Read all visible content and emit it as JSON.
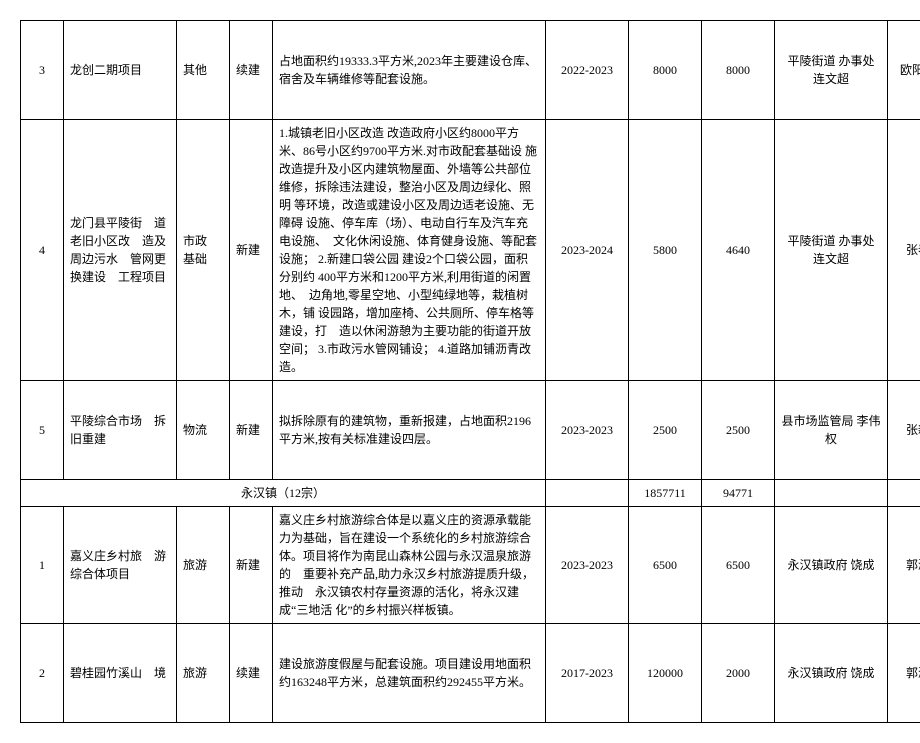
{
  "rows": [
    {
      "idx": "3",
      "name": "龙创二期项目",
      "cat": "其他",
      "status": "续建",
      "desc": "占地面积约19333.3平方米,2023年主要建设仓库、　宿舍及车辆维修等配套设施。",
      "period": "2022-2023",
      "num1": "8000",
      "num2": "8000",
      "agency": "平陵街道 办事处 连文超",
      "person": "欧阳惠鼎"
    },
    {
      "idx": "4",
      "name": "龙门县平陵街　道老旧小区改　造及周边污水　管网更换建设　工程项目",
      "cat": "市政　基础",
      "status": "新建",
      "desc": "1.城镇老旧小区改造  改造政府小区约8000平方　米、86号小区约9700平方米.对市政配套基础设  施改造提升及小区内建筑物屋面、外墙等公共部位  维修，拆除违法建设，整治小区及周边绿化、照明  等环境，改造或建设小区及周边适老设施、无障碍  设施、停车库（场）、电动自行车及汽车充电设施、　文化休闲设施、体育健身设施、等配套设施；\n2.新建口袋公园  建设2个口袋公园，面积分别约  400平方米和1200平方米,利用街道的闲置地、　边角地,零星空地、小型纯绿地等，栽植树木，铺  设园路，增加座椅、公共厕所、停车格等建设，打　造以休闲游憩为主要功能的街道开放空间；\n3.市政污水管网铺设；\n4.道路加铺沥青改造。",
      "period": "2023-2024",
      "num1": "5800",
      "num2": "4640",
      "agency": "平陵街道 办事处 连文超",
      "person": "张春浪"
    },
    {
      "idx": "5",
      "name": "平陵综合市场　拆旧重建",
      "cat": "物流",
      "status": "新建",
      "desc": "拟拆除原有的建筑物，重新报建，占地面积2196 平方米,按有关标准建设四层。",
      "period": "2023-2023",
      "num1": "2500",
      "num2": "2500",
      "agency": "县市场监管局  李伟权",
      "person": "张新文"
    }
  ],
  "section": {
    "title": "永汉镇（12宗）",
    "num1": "1857711",
    "num2": "94771"
  },
  "rows2": [
    {
      "idx": "1",
      "name": "嘉义庄乡村旅　游综合体项目",
      "cat": "旅游",
      "status": "新建",
      "desc": "嘉义庄乡村旅游综合体是以嘉义庄的资源承载能　力为基础，旨在建设一个系统化的乡村旅游综合　体。项目将作为南昆山森林公园与永汉温泉旅游的　重要补充产品,助力永汉乡村旅游提质升级，推动　永汉镇农村存量资源的活化，将永汉建成“三地活  化”的乡村振兴样板镇。",
      "period": "2023-2023",
      "num1": "6500",
      "num2": "6500",
      "agency": "永汉镇政府  饶成",
      "person": "郭淑娴"
    },
    {
      "idx": "2",
      "name": "碧桂园竹溪山　境",
      "cat": "旅游",
      "status": "续建",
      "desc": "建设旅游度假屋与配套设施。项目建设用地面积约163248平方米，总建筑面积约292455平方米。",
      "period": "2017-2023",
      "num1": "120000",
      "num2": "2000",
      "agency": "永汉镇政府  饶成",
      "person": "郭淑娴"
    }
  ]
}
